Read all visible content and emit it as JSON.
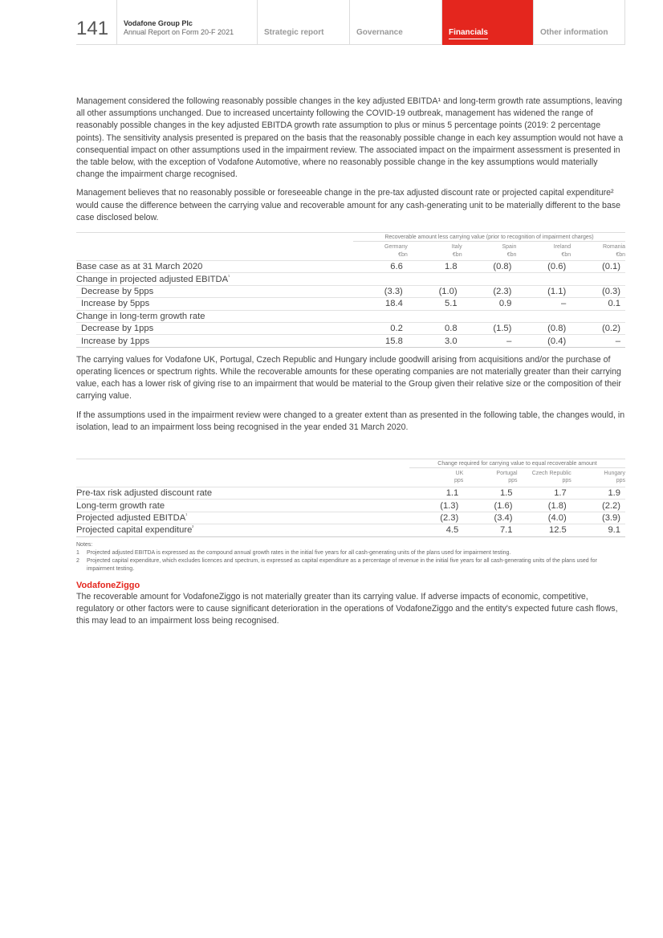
{
  "header": {
    "page_number": "141",
    "company": "Vodafone Group Plc",
    "report": "Annual Report on Form 20-F 2021",
    "tabs": [
      {
        "label": "Strategic report",
        "active": false
      },
      {
        "label": "Governance",
        "active": false
      },
      {
        "label": "Financials",
        "active": true
      },
      {
        "label": "Other information",
        "active": false
      }
    ],
    "accent_color": "#e4261e"
  },
  "paragraphs": [
    "Management considered the following reasonably possible changes in the key adjusted EBITDA¹ and long-term growth rate assumptions, leaving all other assumptions unchanged. Due to increased uncertainty following the COVID-19 outbreak, management has widened the range of reasonably possible changes in the key adjusted EBITDA growth rate assumption to plus or minus 5 percentage points (2019: 2 percentage points). The sensitivity analysis presented is prepared on the basis that the reasonably possible change in each key assumption would not have a consequential impact on other assumptions used in the impairment review. The associated impact on the impairment assessment is presented in the table below, with the exception of Vodafone Automotive, where no reasonably possible change in the key assumptions would materially change the impairment charge recognised.",
    "Management believes that no reasonably possible or foreseeable change in the pre-tax adjusted discount rate or projected capital expenditure² would cause the difference between the carrying value and recoverable amount for any cash-generating unit to be materially different to the base case disclosed below.",
    "The carrying values for Vodafone UK, Portugal, Czech Republic and Hungary include goodwill arising from acquisitions and/or the purchase of operating licences or spectrum rights. While the recoverable amounts for these operating companies are not materially greater than their carrying value, each has a lower risk of giving rise to an impairment that would be material to the Group given their relative size or the composition of their carrying value.",
    "If the assumptions used in the impairment review were changed to a greater extent than as presented in the following table, the changes would, in isolation, lead to an impairment loss being recognised in the year ended 31 March 2020."
  ],
  "table1": {
    "group_header": "Recoverable amount less carrying value (prior to recognition of impairment charges)",
    "columns": [
      {
        "name": "Germany",
        "unit": "€bn"
      },
      {
        "name": "Italy",
        "unit": "€bn"
      },
      {
        "name": "Spain",
        "unit": "€bn"
      },
      {
        "name": "Ireland",
        "unit": "€bn"
      },
      {
        "name": "Romania",
        "unit": "€bn"
      }
    ],
    "rows": [
      {
        "label": "Base case as at 31 March 2020",
        "indent": false,
        "values": [
          "6.6",
          "1.8",
          "(0.8)",
          "(0.6)",
          "(0.1)"
        ]
      },
      {
        "label": "Change in projected adjusted EBITDA¹",
        "indent": false,
        "values": [
          "",
          "",
          "",
          "",
          ""
        ]
      },
      {
        "label": "Decrease by 5pps",
        "indent": true,
        "values": [
          "(3.3)",
          "(1.0)",
          "(2.3)",
          "(1.1)",
          "(0.3)"
        ]
      },
      {
        "label": "Increase by 5pps",
        "indent": true,
        "values": [
          "18.4",
          "5.1",
          "0.9",
          "–",
          "0.1"
        ]
      },
      {
        "label": "Change in long-term growth rate",
        "indent": false,
        "values": [
          "",
          "",
          "",
          "",
          ""
        ]
      },
      {
        "label": "Decrease by 1pps",
        "indent": true,
        "values": [
          "0.2",
          "0.8",
          "(1.5)",
          "(0.8)",
          "(0.2)"
        ]
      },
      {
        "label": "Increase by 1pps",
        "indent": true,
        "values": [
          "15.8",
          "3.0",
          "–",
          "(0.4)",
          "–"
        ]
      }
    ]
  },
  "table2": {
    "group_header": "Change required for carrying value to equal recoverable amount",
    "columns": [
      {
        "name": "UK",
        "unit": "pps"
      },
      {
        "name": "Portugal",
        "unit": "pps"
      },
      {
        "name": "Czech Republic",
        "unit": "pps"
      },
      {
        "name": "Hungary",
        "unit": "pps"
      }
    ],
    "rows": [
      {
        "label": "Pre-tax risk adjusted discount rate",
        "values": [
          "1.1",
          "1.5",
          "1.7",
          "1.9"
        ]
      },
      {
        "label": "Long-term growth rate",
        "values": [
          "(1.3)",
          "(1.6)",
          "(1.8)",
          "(2.2)"
        ]
      },
      {
        "label": "Projected adjusted EBITDA¹",
        "values": [
          "(2.3)",
          "(3.4)",
          "(4.0)",
          "(3.9)"
        ]
      },
      {
        "label": "Projected capital expenditure²",
        "values": [
          "4.5",
          "7.1",
          "12.5",
          "9.1"
        ]
      }
    ]
  },
  "notes": {
    "title": "Notes:",
    "items": [
      {
        "num": "1",
        "text": "Projected adjusted EBITDA is expressed as the compound annual growth rates in the initial five years for all cash-generating units of the plans used for impairment testing."
      },
      {
        "num": "2",
        "text": "Projected capital expenditure, which excludes licences and spectrum, is expressed as capital expenditure as a percentage of revenue in the initial five years for all cash-generating units of the plans used for impairment testing."
      }
    ]
  },
  "ziggo": {
    "heading": "VodafoneZiggo",
    "text": "The recoverable amount for VodafoneZiggo is not materially greater than its carrying value. If adverse impacts of economic, competitive, regulatory or other factors were to cause significant deterioration in the operations of VodafoneZiggo and the entity's expected future cash flows, this may lead to an impairment loss being recognised."
  }
}
